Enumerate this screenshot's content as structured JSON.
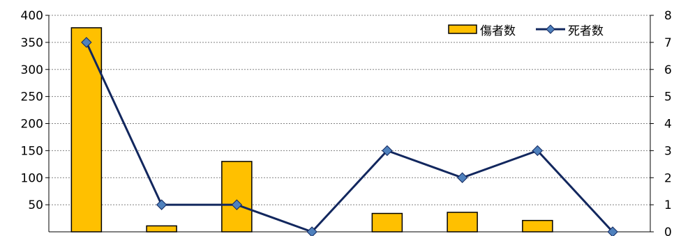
{
  "chart_data": {
    "type": "bar",
    "categories": [
      "",
      "",
      "",
      "",
      "",
      "",
      "",
      ""
    ],
    "series": [
      {
        "name": "傷者数",
        "type": "bar",
        "axis": "left",
        "values": [
          377,
          11,
          130,
          0,
          34,
          36,
          21,
          0
        ]
      },
      {
        "name": "死者数",
        "type": "line",
        "axis": "right",
        "values": [
          7,
          1,
          1,
          0,
          3,
          2,
          3,
          0
        ]
      }
    ],
    "y_left": {
      "range": [
        0,
        400
      ],
      "ticks": [
        "50",
        "100",
        "150",
        "200",
        "250",
        "300",
        "350",
        "400"
      ]
    },
    "y_right": {
      "range": [
        0,
        8
      ],
      "ticks": [
        "0",
        "1",
        "2",
        "3",
        "4",
        "5",
        "6",
        "7",
        "8"
      ]
    },
    "grid": true,
    "legend": "top-right",
    "colors": {
      "bar_fill": "#FFC000",
      "bar_stroke": "#000000",
      "line": "#12275E",
      "marker": "#4F81BD",
      "grid": "#808080"
    }
  }
}
